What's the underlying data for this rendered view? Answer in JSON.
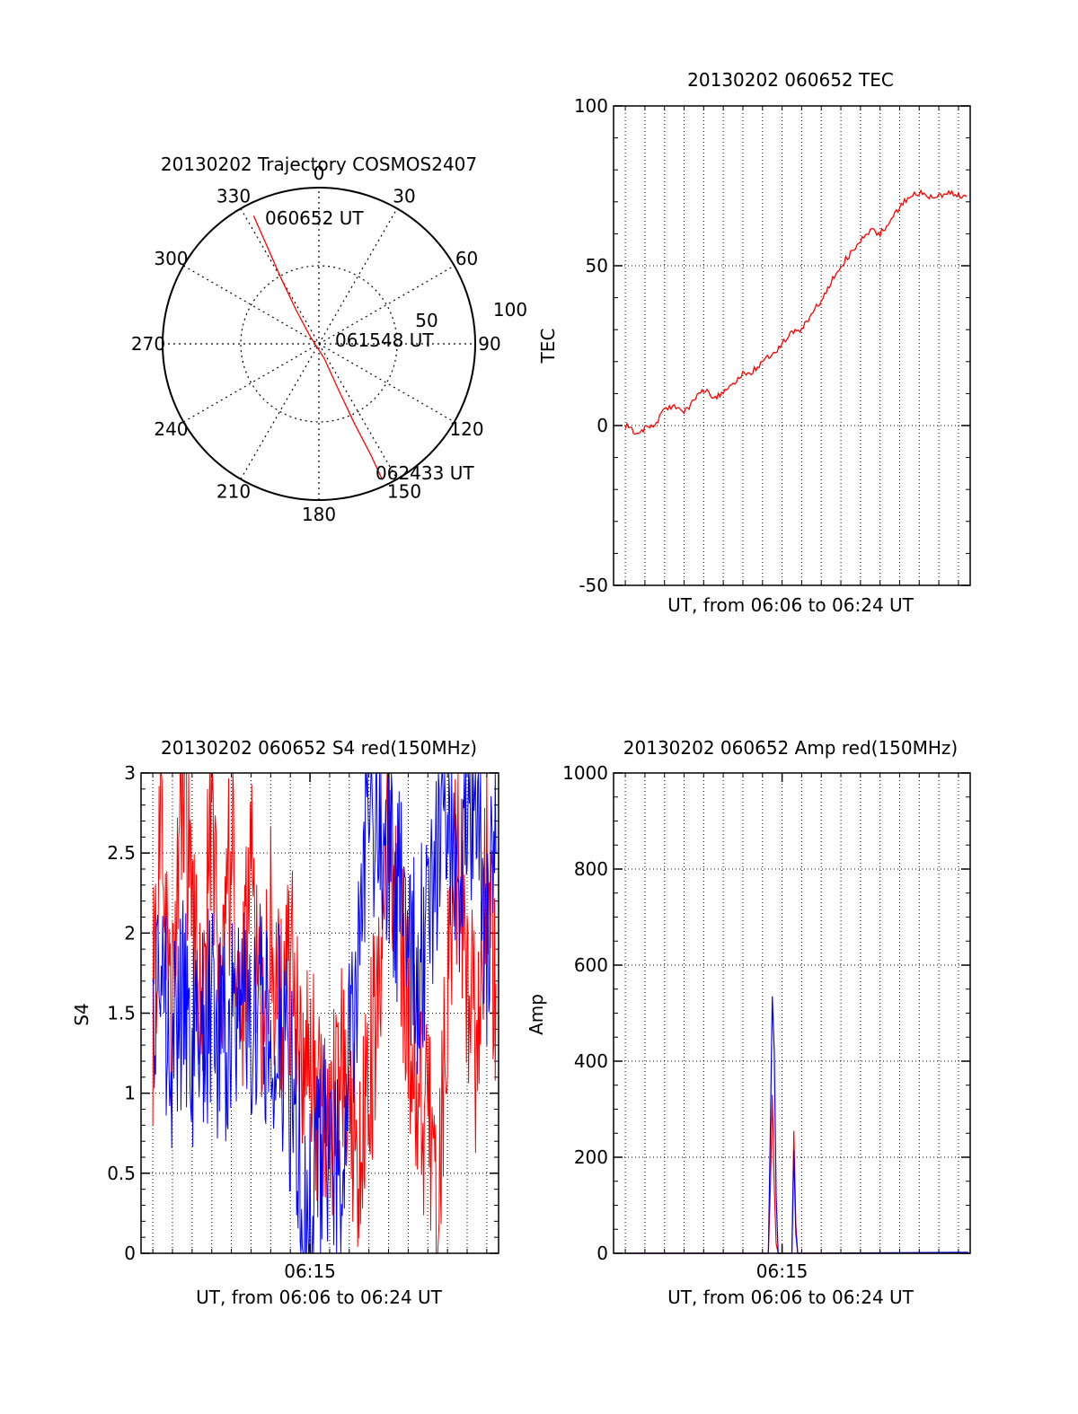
{
  "chart_data": [
    {
      "type": "polar",
      "title": "20130202 Trajectory COSMOS2407",
      "angle_labels": [
        "0",
        "30",
        "60",
        "90",
        "120",
        "150",
        "180",
        "210",
        "240",
        "270",
        "300",
        "330"
      ],
      "radial_labels": [
        "50",
        "100"
      ],
      "grid": true,
      "trajectory": {
        "color": "#ff0000",
        "points": [
          {
            "azimuth": 333,
            "zenith": 92
          },
          {
            "azimuth": 332,
            "zenith": 70
          },
          {
            "azimuth": 330,
            "zenith": 48
          },
          {
            "azimuth": 326,
            "zenith": 26
          },
          {
            "azimuth": 312,
            "zenith": 8
          },
          {
            "azimuth": 160,
            "zenith": 10
          },
          {
            "azimuth": 157,
            "zenith": 30
          },
          {
            "azimuth": 156,
            "zenith": 55
          },
          {
            "azimuth": 155,
            "zenith": 78
          },
          {
            "azimuth": 155,
            "zenith": 96
          }
        ]
      },
      "annotations": [
        {
          "text": "060652 UT",
          "at": "start"
        },
        {
          "text": "061548 UT",
          "at": "center"
        },
        {
          "text": "062433 UT",
          "at": "end"
        }
      ]
    },
    {
      "type": "line",
      "title": "20130202 060652 TEC",
      "xlabel": "UT, from 06:06 to 06:24 UT",
      "ylabel": "TEC",
      "ylim": [
        -50,
        100
      ],
      "y_ticks": [
        "-50",
        "0",
        "50",
        "100"
      ],
      "xlim_minutes": [
        6.4,
        24.6
      ],
      "grid": true,
      "series": [
        {
          "color": "#ff0000",
          "x": [
            7.0,
            7.5,
            8.0,
            8.5,
            9.0,
            9.5,
            10.0,
            10.5,
            11.0,
            11.5,
            12.0,
            12.5,
            13.0,
            13.5,
            14.0,
            14.5,
            15.0,
            15.5,
            16.0,
            16.5,
            17.0,
            17.5,
            18.0,
            18.5,
            19.0,
            19.5,
            20.0,
            20.5,
            21.0,
            21.5,
            22.0,
            22.5,
            23.0,
            23.5,
            24.0,
            24.5
          ],
          "y": [
            0,
            -2,
            -1,
            0,
            5,
            6,
            4,
            8,
            11,
            9,
            10,
            13,
            16,
            17,
            20,
            22,
            26,
            29,
            30,
            35,
            39,
            45,
            50,
            54,
            58,
            61,
            60,
            64,
            68,
            72,
            73,
            71,
            72,
            73,
            72,
            72
          ]
        }
      ]
    },
    {
      "type": "line",
      "title": "20130202 060652 S4 red(150MHz)",
      "xlabel": "UT, from 06:06 to 06:24 UT",
      "ylabel": "S4",
      "ylim": [
        0,
        3
      ],
      "y_ticks": [
        "0",
        "0.5",
        "1",
        "1.5",
        "2",
        "2.5",
        "3"
      ],
      "x_ticks": [
        "06:15"
      ],
      "xlim_minutes": [
        6.4,
        24.6
      ],
      "grid": true,
      "series": [
        {
          "color": "#ff0000",
          "x": [
            7.0,
            7.5,
            8.0,
            8.5,
            9.0,
            9.5,
            10.0,
            10.5,
            11.0,
            11.5,
            12.0,
            12.5,
            13.0,
            13.5,
            14.0,
            14.5,
            15.0,
            15.5,
            16.0,
            16.5,
            17.0,
            17.5,
            18.0,
            18.5,
            19.0,
            19.5,
            20.0,
            20.5,
            21.0,
            21.5,
            22.0,
            22.5,
            23.0,
            23.5,
            24.0,
            24.5
          ],
          "y": [
            1.5,
            2.8,
            1.4,
            3.0,
            2.2,
            1.3,
            2.9,
            1.4,
            2.7,
            1.6,
            2.4,
            1.3,
            2.0,
            1.5,
            1.8,
            1.4,
            1.3,
            0.9,
            0.6,
            1.2,
            1.0,
            0.5,
            1.1,
            1.6,
            2.8,
            2.1,
            1.5,
            1.0,
            0.8,
            0.4,
            1.6,
            2.5,
            1.8,
            1.2,
            2.6,
            1.5
          ]
        },
        {
          "color": "#0000ff",
          "x": [
            7.0,
            7.5,
            8.0,
            8.5,
            9.0,
            9.5,
            10.0,
            10.5,
            11.0,
            11.5,
            12.0,
            12.5,
            13.0,
            13.5,
            14.0,
            14.5,
            15.0,
            15.5,
            16.0,
            16.5,
            17.0,
            17.5,
            18.0,
            18.5,
            19.0,
            19.5,
            20.0,
            20.5,
            21.0,
            21.5,
            22.0,
            22.5,
            23.0,
            23.5,
            24.0,
            24.5
          ],
          "y": [
            1.4,
            1.5,
            1.3,
            1.6,
            1.2,
            1.4,
            1.5,
            1.3,
            1.4,
            1.6,
            1.3,
            1.5,
            1.2,
            1.4,
            1.0,
            0.6,
            0.3,
            0.5,
            0.8,
            0.3,
            1.2,
            2.0,
            2.9,
            2.6,
            2.5,
            2.2,
            2.0,
            1.8,
            2.0,
            2.4,
            2.8,
            2.2,
            2.7,
            2.9,
            1.9,
            3.0
          ]
        }
      ]
    },
    {
      "type": "line",
      "title": "20130202 060652 Amp red(150MHz)",
      "xlabel": "UT, from 06:06 to 06:24 UT",
      "ylabel": "Amp",
      "ylim": [
        0,
        1000
      ],
      "y_ticks": [
        "0",
        "200",
        "400",
        "600",
        "800",
        "1000"
      ],
      "x_ticks": [
        "06:15"
      ],
      "xlim_minutes": [
        6.4,
        24.6
      ],
      "grid": true,
      "series": [
        {
          "color": "#ff0000",
          "x": [
            7.0,
            14.3,
            14.4,
            14.5,
            14.6,
            14.7,
            14.8,
            15.5,
            15.6,
            15.7,
            15.8,
            24.5
          ],
          "y": [
            0,
            0,
            130,
            330,
            140,
            20,
            0,
            0,
            255,
            60,
            0,
            0
          ]
        },
        {
          "color": "#0000ff",
          "x": [
            7.0,
            14.3,
            14.4,
            14.5,
            14.6,
            14.7,
            14.8,
            15.5,
            15.6,
            15.7,
            15.8,
            24.5
          ],
          "y": [
            0,
            0,
            250,
            535,
            420,
            120,
            0,
            0,
            215,
            40,
            0,
            2
          ]
        }
      ]
    }
  ]
}
